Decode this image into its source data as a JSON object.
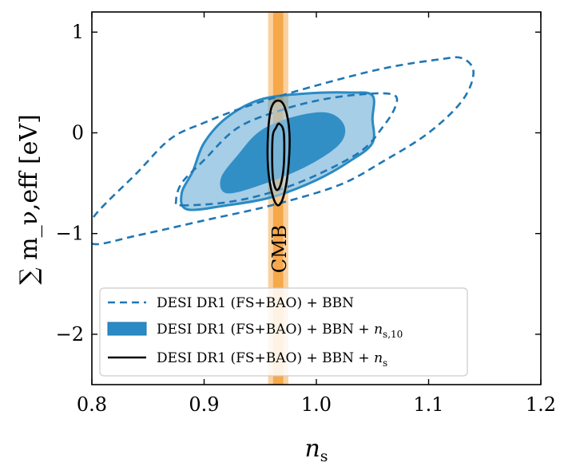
{
  "chart_data": {
    "type": "contour",
    "xlabel": "n_s",
    "xlabel_sub": "s",
    "ylabel": "∑ m_ν,eff [eV]",
    "xlim": [
      0.8,
      1.2
    ],
    "ylim": [
      -2.5,
      1.2
    ],
    "xticks": [
      "0.8",
      "0.9",
      "1.0",
      "1.1",
      "1.2"
    ],
    "yticks": [
      "1",
      "0",
      "−1",
      "−2"
    ],
    "xtick_values": [
      0.8,
      0.9,
      1.0,
      1.1,
      1.2
    ],
    "ytick_values": [
      1,
      0,
      -1,
      -2
    ],
    "grid": false,
    "legend_position": "lower-left",
    "annotation": "CMB",
    "cmb_band": {
      "color": "#f5a340",
      "inner": [
        0.9615,
        0.9705
      ],
      "outer": [
        0.957,
        0.975
      ]
    },
    "series": [
      {
        "name": "DESI DR1 (FS+BAO) + BBN",
        "style": "dashed",
        "color": "#1f77b4",
        "contours": [
          {
            "level": "95%",
            "points": [
              [
                0.8,
                -1.1
              ],
              [
                0.84,
                -1.02
              ],
              [
                0.9,
                -0.87
              ],
              [
                0.96,
                -0.72
              ],
              [
                1.02,
                -0.52
              ],
              [
                1.06,
                -0.28
              ],
              [
                1.1,
                0.0
              ],
              [
                1.13,
                0.32
              ],
              [
                1.14,
                0.6
              ],
              [
                1.13,
                0.74
              ],
              [
                1.11,
                0.73
              ],
              [
                1.06,
                0.64
              ],
              [
                1.0,
                0.47
              ],
              [
                0.94,
                0.27
              ],
              [
                0.9,
                0.1
              ],
              [
                0.87,
                -0.06
              ],
              [
                0.84,
                -0.4
              ],
              [
                0.8,
                -0.86
              ]
            ]
          },
          {
            "level": "68%",
            "points": [
              [
                0.88,
                -0.72
              ],
              [
                0.92,
                -0.69
              ],
              [
                0.96,
                -0.59
              ],
              [
                1.0,
                -0.42
              ],
              [
                1.04,
                -0.18
              ],
              [
                1.06,
                0.07
              ],
              [
                1.07,
                0.25
              ],
              [
                1.07,
                0.37
              ],
              [
                1.05,
                0.39
              ],
              [
                1.01,
                0.34
              ],
              [
                0.97,
                0.23
              ],
              [
                0.93,
                0.05
              ],
              [
                0.9,
                -0.27
              ],
              [
                0.88,
                -0.5
              ],
              [
                0.875,
                -0.68
              ]
            ]
          }
        ]
      },
      {
        "name": "DESI DR1 (FS+BAO) + BBN + n_s,10",
        "style": "filled",
        "color": "#2a8bc4",
        "contours": [
          {
            "level": "95%",
            "points": [
              [
                0.885,
                -0.76
              ],
              [
                0.92,
                -0.72
              ],
              [
                0.96,
                -0.64
              ],
              [
                1.0,
                -0.47
              ],
              [
                1.03,
                -0.28
              ],
              [
                1.05,
                -0.1
              ],
              [
                1.05,
                0.14
              ],
              [
                1.05,
                0.37
              ],
              [
                1.03,
                0.4
              ],
              [
                0.99,
                0.39
              ],
              [
                0.95,
                0.33
              ],
              [
                0.92,
                0.15
              ],
              [
                0.9,
                -0.1
              ],
              [
                0.89,
                -0.38
              ],
              [
                0.88,
                -0.6
              ]
            ]
          },
          {
            "level": "68%",
            "points": [
              [
                0.92,
                -0.6
              ],
              [
                0.95,
                -0.52
              ],
              [
                0.99,
                -0.34
              ],
              [
                1.02,
                -0.12
              ],
              [
                1.025,
                0.07
              ],
              [
                1.01,
                0.2
              ],
              [
                0.98,
                0.16
              ],
              [
                0.95,
                0.02
              ],
              [
                0.93,
                -0.22
              ],
              [
                0.915,
                -0.45
              ]
            ]
          }
        ]
      },
      {
        "name": "DESI DR1 (FS+BAO) + BBN + n_s",
        "style": "solid",
        "color": "#000000",
        "contours": [
          {
            "level": "95%",
            "points": [
              [
                0.966,
                0.32
              ],
              [
                0.972,
                0.25
              ],
              [
                0.976,
                0.0
              ],
              [
                0.975,
                -0.35
              ],
              [
                0.971,
                -0.62
              ],
              [
                0.966,
                -0.72
              ],
              [
                0.961,
                -0.62
              ],
              [
                0.957,
                -0.35
              ],
              [
                0.957,
                0.0
              ],
              [
                0.96,
                0.25
              ]
            ]
          },
          {
            "level": "68%",
            "points": [
              [
                0.967,
                0.09
              ],
              [
                0.971,
                0.0
              ],
              [
                0.971,
                -0.32
              ],
              [
                0.968,
                -0.52
              ],
              [
                0.964,
                -0.56
              ],
              [
                0.961,
                -0.4
              ],
              [
                0.961,
                -0.05
              ],
              [
                0.964,
                0.05
              ]
            ]
          }
        ]
      }
    ]
  }
}
